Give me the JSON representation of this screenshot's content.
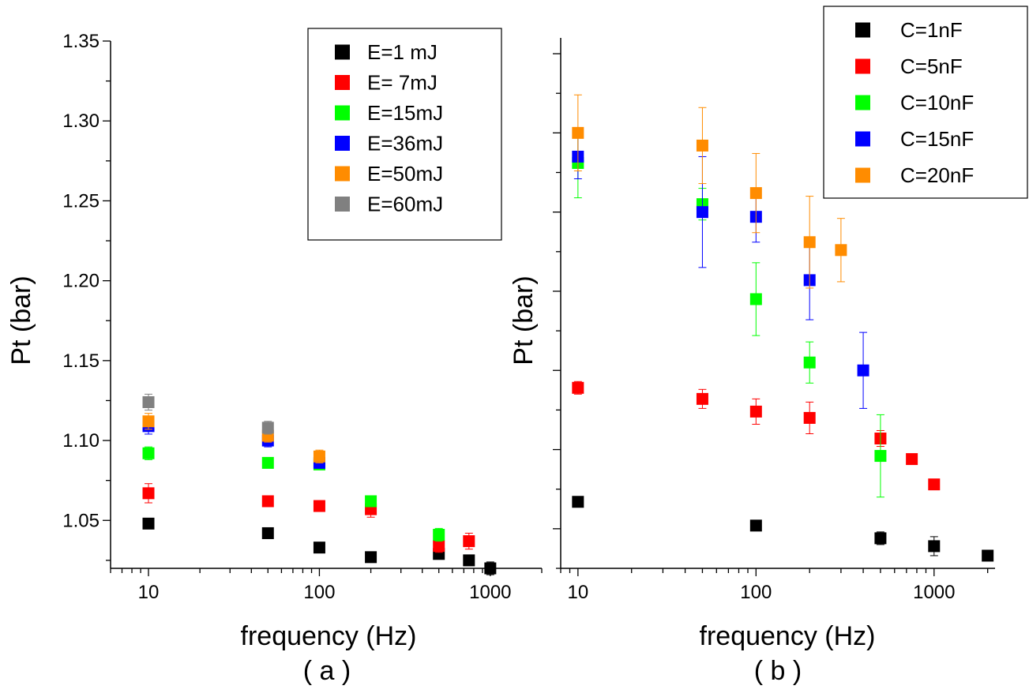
{
  "chart_data": [
    {
      "type": "scatter",
      "xscale": "log",
      "xlim": [
        6,
        2000
      ],
      "ylim": [
        1.02,
        1.35
      ],
      "xticks": [
        10,
        100,
        1000
      ],
      "xtick_labels": [
        "10",
        "100",
        "1000"
      ],
      "yticks": [
        1.05,
        1.1,
        1.15,
        1.2,
        1.25,
        1.3,
        1.35
      ],
      "ytick_labels": [
        "1.05",
        "1.10",
        "1.15",
        "1.20",
        "1.25",
        "1.30",
        "1.35"
      ],
      "xlabel": "frequency (Hz)",
      "ylabel": "Pt (bar)",
      "caption": "( a )",
      "legend_position": "top-right",
      "series": [
        {
          "name": "E=1 mJ",
          "color": "#000000",
          "points": [
            {
              "x": 10,
              "y": 1.048,
              "err": 0.002
            },
            {
              "x": 50,
              "y": 1.042,
              "err": 0.002
            },
            {
              "x": 100,
              "y": 1.033,
              "err": 0.002
            },
            {
              "x": 200,
              "y": 1.027,
              "err": 0.002
            },
            {
              "x": 500,
              "y": 1.029,
              "err": 0.002
            },
            {
              "x": 750,
              "y": 1.025,
              "err": 0.002
            },
            {
              "x": 1000,
              "y": 1.02,
              "err": 0.004
            }
          ]
        },
        {
          "name": "E= 7mJ",
          "color": "#ff0000",
          "points": [
            {
              "x": 10,
              "y": 1.067,
              "err": 0.006
            },
            {
              "x": 50,
              "y": 1.062,
              "err": 0.002
            },
            {
              "x": 100,
              "y": 1.059,
              "err": 0.002
            },
            {
              "x": 200,
              "y": 1.057,
              "err": 0.005
            },
            {
              "x": 500,
              "y": 1.034,
              "err": 0.004
            },
            {
              "x": 750,
              "y": 1.037,
              "err": 0.005
            }
          ]
        },
        {
          "name": "E=15mJ",
          "color": "#00ff00",
          "points": [
            {
              "x": 10,
              "y": 1.092,
              "err": 0.004
            },
            {
              "x": 50,
              "y": 1.086,
              "err": 0.003
            },
            {
              "x": 100,
              "y": 1.085,
              "err": 0.003
            },
            {
              "x": 200,
              "y": 1.062,
              "err": 0.002
            },
            {
              "x": 500,
              "y": 1.041,
              "err": 0.004
            }
          ]
        },
        {
          "name": "E=36mJ",
          "color": "#0000ff",
          "points": [
            {
              "x": 10,
              "y": 1.109,
              "err": 0.005
            },
            {
              "x": 50,
              "y": 1.1,
              "err": 0.004
            },
            {
              "x": 100,
              "y": 1.086,
              "err": 0.002
            }
          ]
        },
        {
          "name": "E=50mJ",
          "color": "#ff8c00",
          "points": [
            {
              "x": 10,
              "y": 1.112,
              "err": 0.005
            },
            {
              "x": 50,
              "y": 1.103,
              "err": 0.004
            },
            {
              "x": 100,
              "y": 1.09,
              "err": 0.004
            }
          ]
        },
        {
          "name": "E=60mJ",
          "color": "#808080",
          "points": [
            {
              "x": 10,
              "y": 1.124,
              "err": 0.005
            },
            {
              "x": 50,
              "y": 1.108,
              "err": 0.004
            }
          ]
        }
      ]
    },
    {
      "type": "scatter",
      "xscale": "log",
      "xlim": [
        8,
        2200
      ],
      "ylim": [
        1.025,
        1.36
      ],
      "xticks": [
        10,
        100,
        1000
      ],
      "xtick_labels": [
        "10",
        "100",
        "1000"
      ],
      "yticks": [
        1.05,
        1.1,
        1.15,
        1.2,
        1.25,
        1.3,
        1.35
      ],
      "ytick_labels": [],
      "xlabel": "frequency (Hz)",
      "ylabel": "Pt (bar)",
      "caption": "( b )",
      "legend_position": "top-right",
      "series": [
        {
          "name": "C=1nF",
          "color": "#000000",
          "points": [
            {
              "x": 10,
              "y": 1.067,
              "err": 0.003
            },
            {
              "x": 100,
              "y": 1.052,
              "err": 0.003
            },
            {
              "x": 500,
              "y": 1.044,
              "err": 0.004
            },
            {
              "x": 1000,
              "y": 1.039,
              "err": 0.006
            },
            {
              "x": 2000,
              "y": 1.033,
              "err": 0.002
            }
          ]
        },
        {
          "name": "C=5nF",
          "color": "#ff0000",
          "points": [
            {
              "x": 10,
              "y": 1.139,
              "err": 0.004
            },
            {
              "x": 50,
              "y": 1.132,
              "err": 0.006
            },
            {
              "x": 100,
              "y": 1.124,
              "err": 0.008
            },
            {
              "x": 200,
              "y": 1.12,
              "err": 0.01
            },
            {
              "x": 500,
              "y": 1.107,
              "err": 0.005
            },
            {
              "x": 750,
              "y": 1.094,
              "err": 0.003
            },
            {
              "x": 1000,
              "y": 1.078,
              "err": 0.002
            }
          ]
        },
        {
          "name": "C=10nF",
          "color": "#00ff00",
          "points": [
            {
              "x": 10,
              "y": 1.281,
              "err": 0.022
            },
            {
              "x": 50,
              "y": 1.255,
              "err": 0.01
            },
            {
              "x": 100,
              "y": 1.195,
              "err": 0.023
            },
            {
              "x": 200,
              "y": 1.155,
              "err": 0.013
            },
            {
              "x": 500,
              "y": 1.096,
              "err": 0.026
            }
          ]
        },
        {
          "name": "C=15nF",
          "color": "#0000ff",
          "points": [
            {
              "x": 10,
              "y": 1.285,
              "err": 0.014
            },
            {
              "x": 50,
              "y": 1.25,
              "err": 0.035
            },
            {
              "x": 100,
              "y": 1.247,
              "err": 0.016
            },
            {
              "x": 200,
              "y": 1.207,
              "err": 0.025
            },
            {
              "x": 400,
              "y": 1.15,
              "err": 0.024
            }
          ]
        },
        {
          "name": "C=20nF",
          "color": "#ff8c00",
          "points": [
            {
              "x": 10,
              "y": 1.3,
              "err": 0.024
            },
            {
              "x": 50,
              "y": 1.292,
              "err": 0.024
            },
            {
              "x": 100,
              "y": 1.262,
              "err": 0.025
            },
            {
              "x": 200,
              "y": 1.231,
              "err": 0.029
            },
            {
              "x": 300,
              "y": 1.226,
              "err": 0.02
            }
          ]
        }
      ]
    }
  ]
}
